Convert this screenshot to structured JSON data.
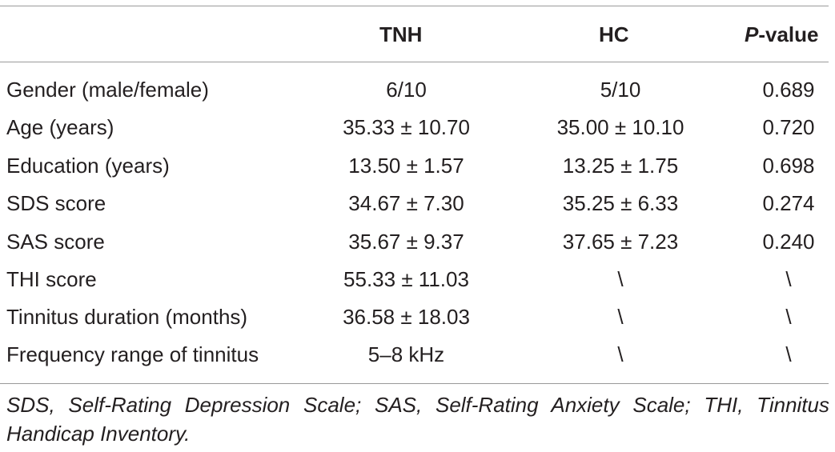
{
  "table": {
    "headers": {
      "label": "",
      "tnh": "TNH",
      "hc": "HC",
      "p_italic": "P",
      "p_rest": "-value"
    },
    "rows": [
      {
        "label": "Gender (male/female)",
        "tnh": "6/10",
        "hc": "5/10",
        "p": "0.689"
      },
      {
        "label": "Age (years)",
        "tnh": "35.33 ± 10.70",
        "hc": "35.00 ± 10.10",
        "p": "0.720"
      },
      {
        "label": "Education (years)",
        "tnh": "13.50 ± 1.57",
        "hc": "13.25 ± 1.75",
        "p": "0.698"
      },
      {
        "label": "SDS score",
        "tnh": "34.67 ± 7.30",
        "hc": "35.25 ± 6.33",
        "p": "0.274"
      },
      {
        "label": "SAS score",
        "tnh": "35.67 ± 9.37",
        "hc": "37.65 ± 7.23",
        "p": "0.240"
      },
      {
        "label": "THI score",
        "tnh": "55.33 ± 11.03",
        "hc": "\\",
        "p": "\\"
      },
      {
        "label": "Tinnitus duration (months)",
        "tnh": "36.58 ± 18.03",
        "hc": "\\",
        "p": "\\"
      },
      {
        "label": "Frequency range of tinnitus",
        "tnh": "5–8 kHz",
        "hc": "\\",
        "p": "\\"
      }
    ],
    "footnote": "SDS, Self-Rating Depression Scale; SAS, Self-Rating Anxiety Scale; THI, Tinnitus Handicap Inventory."
  },
  "colors": {
    "text": "#231f20",
    "rule": "#9a9a9a",
    "background": "#ffffff"
  }
}
